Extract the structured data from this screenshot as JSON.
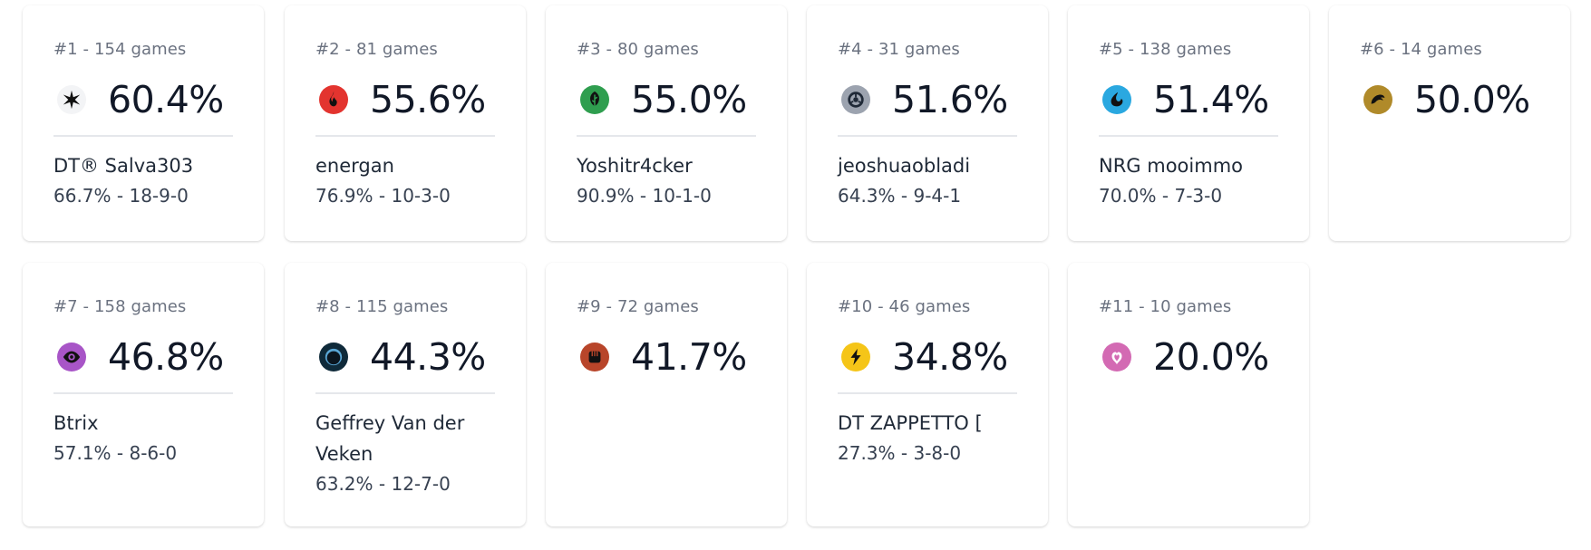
{
  "colors": {
    "card_bg": "#ffffff",
    "muted_text": "#6b7280",
    "primary_text": "#111827",
    "divider": "#e5e7eb"
  },
  "cards": [
    {
      "header": "#1 - 154 games",
      "rate": "60.4%",
      "icon": "star-icon",
      "badge_bg": "#f3f4f6",
      "badge_fg": "#111111",
      "player": "DT® Salva303",
      "record": "66.7% - 18-9-0"
    },
    {
      "header": "#2 - 81 games",
      "rate": "55.6%",
      "icon": "fire-icon",
      "badge_bg": "#e3342f",
      "badge_fg": "#111111",
      "player": "energan",
      "record": "76.9% - 10-3-0"
    },
    {
      "header": "#3 - 80 games",
      "rate": "55.0%",
      "icon": "leaf-icon",
      "badge_bg": "#2f9e4f",
      "badge_fg": "#111111",
      "player": "Yoshitr4cker",
      "record": "90.9% - 10-1-0"
    },
    {
      "header": "#4 - 31 games",
      "rate": "51.6%",
      "icon": "metal-icon",
      "badge_bg": "#9ca3af",
      "badge_fg": "#1f2937",
      "player": "jeoshuaobladi",
      "record": "64.3% - 9-4-1"
    },
    {
      "header": "#5 - 138 games",
      "rate": "51.4%",
      "icon": "water-icon",
      "badge_bg": "#2aa8e0",
      "badge_fg": "#111111",
      "player": "NRG mooimmo",
      "record": "70.0% - 7-3-0"
    },
    {
      "header": "#6 - 14 games",
      "rate": "50.0%",
      "icon": "dragon-icon",
      "badge_bg": "#b08a2a",
      "badge_fg": "#111111",
      "player": "",
      "record": ""
    },
    {
      "header": "#7 - 158 games",
      "rate": "46.8%",
      "icon": "psychic-eye-icon",
      "badge_bg": "#a855c7",
      "badge_fg": "#111111",
      "player": "Btrix",
      "record": "57.1% - 8-6-0"
    },
    {
      "header": "#8 - 115 games",
      "rate": "44.3%",
      "icon": "darkness-icon",
      "badge_bg": "#0f2a3a",
      "badge_fg": "#5aa7d6",
      "player": "Geffrey Van der Veken",
      "record": "63.2% - 12-7-0"
    },
    {
      "header": "#9 - 72 games",
      "rate": "41.7%",
      "icon": "fighting-icon",
      "badge_bg": "#b8452a",
      "badge_fg": "#111111",
      "player": "",
      "record": ""
    },
    {
      "header": "#10 - 46 games",
      "rate": "34.8%",
      "icon": "lightning-icon",
      "badge_bg": "#f5c518",
      "badge_fg": "#111111",
      "player": "DT ZAPPETTO [",
      "record": "27.3% - 3-8-0"
    },
    {
      "header": "#11 - 10 games",
      "rate": "20.0%",
      "icon": "fairy-icon",
      "badge_bg": "#d36ab3",
      "badge_fg": "#ffffff",
      "player": "",
      "record": ""
    }
  ]
}
